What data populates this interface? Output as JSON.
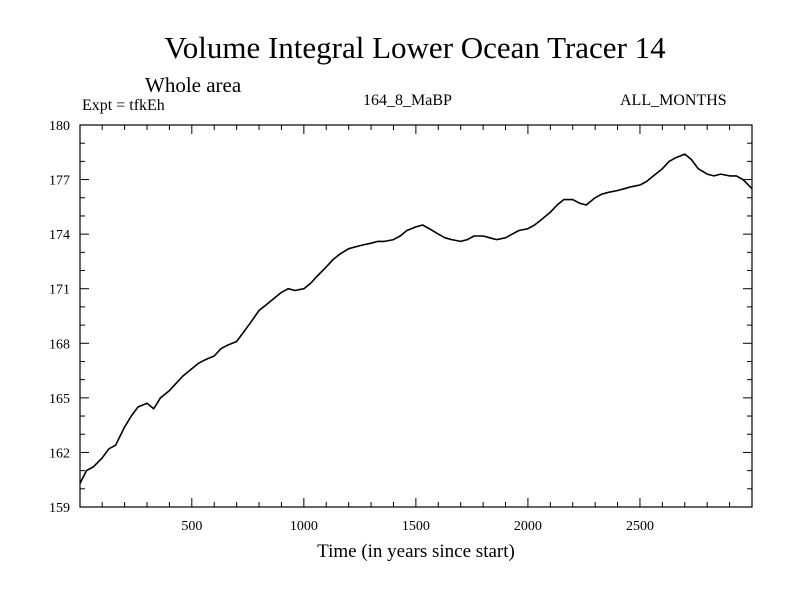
{
  "chart_data": {
    "type": "line",
    "title": "Volume Integral Lower Ocean Tracer 14",
    "subtitle": "Whole area",
    "annotations": {
      "left": "Expt = tfkEh",
      "center": "164_8_MaBP",
      "right": "ALL_MONTHS"
    },
    "xlabel": "Time (in years since start)",
    "ylabel": "",
    "xlim": [
      1,
      3000
    ],
    "ylim": [
      159,
      180
    ],
    "xticks": [
      500,
      1000,
      1500,
      2000,
      2500
    ],
    "yticks": [
      159,
      162,
      165,
      168,
      171,
      174,
      177,
      180
    ],
    "grid": false,
    "series": [
      {
        "color": "#000000",
        "x": [
          1,
          30,
          60,
          100,
          130,
          160,
          200,
          230,
          260,
          300,
          330,
          360,
          400,
          430,
          460,
          500,
          530,
          560,
          600,
          630,
          660,
          700,
          730,
          760,
          800,
          830,
          860,
          900,
          930,
          960,
          1000,
          1030,
          1060,
          1100,
          1130,
          1160,
          1200,
          1230,
          1260,
          1300,
          1330,
          1360,
          1400,
          1430,
          1460,
          1500,
          1530,
          1560,
          1600,
          1630,
          1660,
          1700,
          1730,
          1760,
          1800,
          1830,
          1860,
          1900,
          1930,
          1960,
          2000,
          2030,
          2060,
          2100,
          2130,
          2160,
          2200,
          2230,
          2260,
          2300,
          2330,
          2360,
          2400,
          2430,
          2460,
          2500,
          2530,
          2560,
          2600,
          2630,
          2660,
          2700,
          2730,
          2760,
          2800,
          2830,
          2860,
          2900,
          2930,
          2960,
          3000
        ],
        "values": [
          160.3,
          161.0,
          161.2,
          161.7,
          162.2,
          162.4,
          163.4,
          164.0,
          164.5,
          164.7,
          164.4,
          165.0,
          165.4,
          165.8,
          166.2,
          166.6,
          166.9,
          167.1,
          167.3,
          167.7,
          167.9,
          168.1,
          168.6,
          169.1,
          169.8,
          170.1,
          170.4,
          170.8,
          171.0,
          170.9,
          171.0,
          171.3,
          171.7,
          172.2,
          172.6,
          172.9,
          173.2,
          173.3,
          173.4,
          173.5,
          173.6,
          173.6,
          173.7,
          173.9,
          174.2,
          174.4,
          174.5,
          174.3,
          174.0,
          173.8,
          173.7,
          173.6,
          173.7,
          173.9,
          173.9,
          173.8,
          173.7,
          173.8,
          174.0,
          174.2,
          174.3,
          174.5,
          174.8,
          175.2,
          175.6,
          175.9,
          175.9,
          175.7,
          175.6,
          176.0,
          176.2,
          176.3,
          176.4,
          176.5,
          176.6,
          176.7,
          176.9,
          177.2,
          177.6,
          178.0,
          178.2,
          178.4,
          178.1,
          177.6,
          177.3,
          177.2,
          177.3,
          177.2,
          177.2,
          177.0,
          176.5
        ]
      }
    ]
  }
}
